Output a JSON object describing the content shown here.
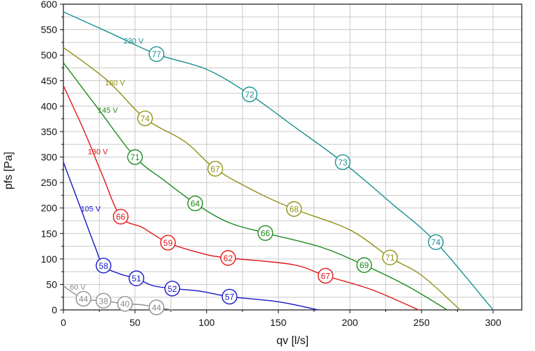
{
  "chart_data": {
    "type": "line",
    "xlabel": "qv [l/s]",
    "ylabel": "pfs [Pa]",
    "xlim": [
      0,
      320
    ],
    "ylim": [
      0,
      600
    ],
    "xticks": [
      0,
      50,
      100,
      150,
      200,
      250,
      300
    ],
    "yticks": [
      0,
      50,
      100,
      150,
      200,
      250,
      300,
      350,
      400,
      450,
      500,
      550,
      600
    ],
    "grid": true,
    "series": [
      {
        "name": "230 V",
        "color": "#1a9090",
        "label_at": [
          49,
          528
        ],
        "points": [
          [
            0,
            585
          ],
          [
            33,
            543
          ],
          [
            65,
            502
          ],
          [
            100,
            472
          ],
          [
            130,
            423
          ],
          [
            160,
            362
          ],
          [
            195,
            290
          ],
          [
            230,
            207
          ],
          [
            260,
            133
          ],
          [
            300,
            0
          ]
        ],
        "markers": [
          {
            "x": 65,
            "y": 502,
            "label": "77"
          },
          {
            "x": 130,
            "y": 423,
            "label": "72"
          },
          {
            "x": 195,
            "y": 290,
            "label": "73"
          },
          {
            "x": 260,
            "y": 133,
            "label": "74"
          }
        ]
      },
      {
        "name": "160 V",
        "color": "#8f8f14",
        "label_at": [
          36,
          446
        ],
        "points": [
          [
            0,
            515
          ],
          [
            30,
            452
          ],
          [
            57,
            376
          ],
          [
            85,
            330
          ],
          [
            106,
            277
          ],
          [
            135,
            231
          ],
          [
            161,
            198
          ],
          [
            200,
            157
          ],
          [
            228,
            103
          ],
          [
            250,
            68
          ],
          [
            277,
            0
          ]
        ],
        "markers": [
          {
            "x": 57,
            "y": 376,
            "label": "74"
          },
          {
            "x": 106,
            "y": 277,
            "label": "67"
          },
          {
            "x": 161,
            "y": 198,
            "label": "68"
          },
          {
            "x": 228,
            "y": 103,
            "label": "71"
          }
        ]
      },
      {
        "name": "145 V",
        "color": "#1a8a1a",
        "label_at": [
          31,
          392
        ],
        "points": [
          [
            0,
            485
          ],
          [
            25,
            392
          ],
          [
            50,
            300
          ],
          [
            70,
            255
          ],
          [
            92,
            209
          ],
          [
            115,
            172
          ],
          [
            141,
            151
          ],
          [
            180,
            123
          ],
          [
            210,
            88
          ],
          [
            240,
            47
          ],
          [
            268,
            0
          ]
        ],
        "markers": [
          {
            "x": 50,
            "y": 300,
            "label": "71"
          },
          {
            "x": 92,
            "y": 209,
            "label": "64"
          },
          {
            "x": 141,
            "y": 151,
            "label": "66"
          },
          {
            "x": 210,
            "y": 88,
            "label": "69"
          }
        ]
      },
      {
        "name": "130 V",
        "color": "#e01414",
        "label_at": [
          24,
          311
        ],
        "points": [
          [
            0,
            440
          ],
          [
            15,
            348
          ],
          [
            27,
            266
          ],
          [
            40,
            183
          ],
          [
            55,
            162
          ],
          [
            73,
            132
          ],
          [
            98,
            110
          ],
          [
            115,
            102
          ],
          [
            160,
            89
          ],
          [
            183,
            67
          ],
          [
            215,
            40
          ],
          [
            248,
            0
          ]
        ],
        "markers": [
          {
            "x": 40,
            "y": 183,
            "label": "66"
          },
          {
            "x": 73,
            "y": 132,
            "label": "59"
          },
          {
            "x": 115,
            "y": 102,
            "label": "62"
          },
          {
            "x": 183,
            "y": 67,
            "label": "67"
          }
        ]
      },
      {
        "name": "105 V",
        "color": "#1414c8",
        "label_at": [
          19,
          199
        ],
        "points": [
          [
            0,
            290
          ],
          [
            12,
            200
          ],
          [
            22,
            125
          ],
          [
            28,
            87
          ],
          [
            40,
            70
          ],
          [
            51,
            62
          ],
          [
            62,
            48
          ],
          [
            76,
            42
          ],
          [
            95,
            37
          ],
          [
            116,
            26
          ],
          [
            150,
            16
          ],
          [
            178,
            0
          ]
        ],
        "markers": [
          {
            "x": 28,
            "y": 87,
            "label": "58"
          },
          {
            "x": 51,
            "y": 62,
            "label": "51"
          },
          {
            "x": 76,
            "y": 42,
            "label": "52"
          },
          {
            "x": 116,
            "y": 26,
            "label": "57"
          }
        ]
      },
      {
        "name": "60 V",
        "color": "#8c8c8c",
        "label_at": [
          10,
          45
        ],
        "points": [
          [
            0,
            47
          ],
          [
            14,
            22
          ],
          [
            28,
            18
          ],
          [
            43,
            12
          ],
          [
            55,
            10
          ],
          [
            65,
            5
          ],
          [
            76,
            0
          ]
        ],
        "markers": [
          {
            "x": 14,
            "y": 22,
            "label": "44"
          },
          {
            "x": 28,
            "y": 18,
            "label": "38"
          },
          {
            "x": 43,
            "y": 12,
            "label": "40"
          },
          {
            "x": 65,
            "y": 5,
            "label": "44"
          }
        ]
      }
    ]
  }
}
